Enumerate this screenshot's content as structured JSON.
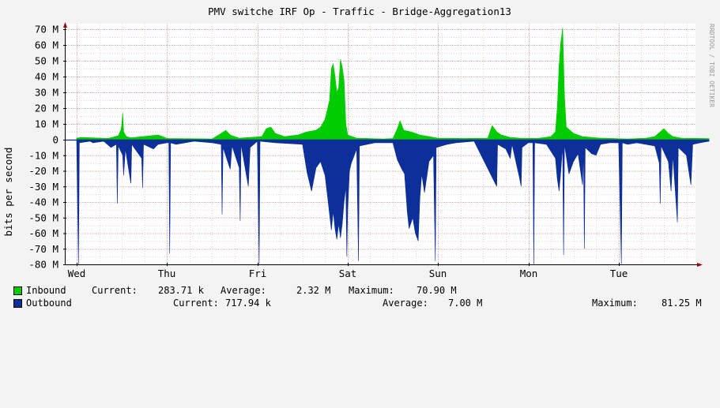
{
  "title": "PMV switche IRF Op - Traffic - Bridge-Aggregation13",
  "watermark": "RRDTOOL / TOBI OETIKER",
  "colors": {
    "background": "#f3f3f3",
    "canvas": "#ffffff",
    "grid": "#e5aaaa",
    "axis": "#000000",
    "arrow": "#a00000",
    "inbound": "#00cc00",
    "outbound": "#0c2f99",
    "outbound_line": "#002a97"
  },
  "legend": {
    "inbound": {
      "name": "Inbound",
      "current_label": "Current:",
      "current": "283.71 k",
      "average_label": "Average:",
      "average": "2.32 M",
      "maximum_label": "Maximum:",
      "maximum": "70.90 M"
    },
    "outbound": {
      "name": "Outbound",
      "current_label": "Current:",
      "current": "717.94 k",
      "average_label": "Average:",
      "average": "7.00 M",
      "maximum_label": "Maximum:",
      "maximum": "81.25 M"
    }
  },
  "chart_data": {
    "type": "area",
    "title": "PMV switche IRF Op - Traffic - Bridge-Aggregation13",
    "ylabel": "bits per second",
    "ylim": [
      -80000000,
      72000000
    ],
    "yticks": [
      {
        "value": 70000000,
        "label": "70 M"
      },
      {
        "value": 60000000,
        "label": "60 M"
      },
      {
        "value": 50000000,
        "label": "50 M"
      },
      {
        "value": 40000000,
        "label": "40 M"
      },
      {
        "value": 30000000,
        "label": "30 M"
      },
      {
        "value": 20000000,
        "label": "20 M"
      },
      {
        "value": 10000000,
        "label": "10 M"
      },
      {
        "value": 0,
        "label": "0"
      },
      {
        "value": -10000000,
        "label": "-10 M"
      },
      {
        "value": -20000000,
        "label": "-20 M"
      },
      {
        "value": -30000000,
        "label": "-30 M"
      },
      {
        "value": -40000000,
        "label": "-40 M"
      },
      {
        "value": -50000000,
        "label": "-50 M"
      },
      {
        "value": -60000000,
        "label": "-60 M"
      },
      {
        "value": -70000000,
        "label": "-70 M"
      },
      {
        "value": -80000000,
        "label": "-80 M"
      }
    ],
    "xrange_days": [
      0,
      7
    ],
    "xticks": [
      {
        "day": 0,
        "label": "Wed"
      },
      {
        "day": 1,
        "label": "Thu"
      },
      {
        "day": 2,
        "label": "Fri"
      },
      {
        "day": 3,
        "label": "Sat"
      },
      {
        "day": 4,
        "label": "Sun"
      },
      {
        "day": 5,
        "label": "Mon"
      },
      {
        "day": 6,
        "label": "Tue"
      }
    ],
    "grid": true,
    "series": [
      {
        "name": "Inbound",
        "color": "#00cc00",
        "direction": "up",
        "points": [
          [
            0.0,
            1.0
          ],
          [
            0.05,
            1.5
          ],
          [
            0.35,
            0.8
          ],
          [
            0.46,
            2.5
          ],
          [
            0.49,
            6
          ],
          [
            0.5,
            10
          ],
          [
            0.51,
            17
          ],
          [
            0.52,
            5
          ],
          [
            0.55,
            2
          ],
          [
            0.6,
            1.2
          ],
          [
            0.9,
            3
          ],
          [
            0.95,
            2
          ],
          [
            1.0,
            0.8
          ],
          [
            1.5,
            0.5
          ],
          [
            1.6,
            4
          ],
          [
            1.65,
            6
          ],
          [
            1.7,
            3
          ],
          [
            1.8,
            1
          ],
          [
            2.05,
            2
          ],
          [
            2.1,
            7
          ],
          [
            2.15,
            8
          ],
          [
            2.2,
            4
          ],
          [
            2.3,
            2
          ],
          [
            2.45,
            3
          ],
          [
            2.55,
            5
          ],
          [
            2.65,
            6
          ],
          [
            2.7,
            8
          ],
          [
            2.75,
            13
          ],
          [
            2.8,
            25
          ],
          [
            2.82,
            45
          ],
          [
            2.84,
            48
          ],
          [
            2.86,
            40
          ],
          [
            2.88,
            30
          ],
          [
            2.9,
            33
          ],
          [
            2.92,
            51
          ],
          [
            2.94,
            46
          ],
          [
            2.96,
            38
          ],
          [
            2.98,
            10
          ],
          [
            3.0,
            3
          ],
          [
            3.1,
            1
          ],
          [
            3.4,
            0.5
          ],
          [
            3.5,
            0.8
          ],
          [
            3.55,
            7
          ],
          [
            3.58,
            12
          ],
          [
            3.62,
            6
          ],
          [
            3.7,
            5
          ],
          [
            3.8,
            3
          ],
          [
            3.9,
            2
          ],
          [
            4.0,
            1
          ],
          [
            4.3,
            0.8
          ],
          [
            4.55,
            1
          ],
          [
            4.6,
            9
          ],
          [
            4.65,
            5
          ],
          [
            4.7,
            3
          ],
          [
            4.8,
            1.5
          ],
          [
            4.9,
            1
          ],
          [
            5.1,
            0.8
          ],
          [
            5.25,
            2
          ],
          [
            5.3,
            5
          ],
          [
            5.32,
            20
          ],
          [
            5.34,
            47
          ],
          [
            5.36,
            62
          ],
          [
            5.37,
            66
          ],
          [
            5.38,
            71
          ],
          [
            5.4,
            28
          ],
          [
            5.42,
            8
          ],
          [
            5.5,
            4
          ],
          [
            5.6,
            2
          ],
          [
            5.8,
            1
          ],
          [
            6.1,
            0.5
          ],
          [
            6.3,
            1
          ],
          [
            6.4,
            2
          ],
          [
            6.5,
            7
          ],
          [
            6.55,
            4
          ],
          [
            6.6,
            2
          ],
          [
            6.7,
            1
          ],
          [
            7.0,
            0.7
          ]
        ]
      },
      {
        "name": "Outbound",
        "color": "#0c2f99",
        "direction": "down",
        "points": [
          [
            0.0,
            1
          ],
          [
            0.02,
            80
          ],
          [
            0.03,
            2
          ],
          [
            0.15,
            1
          ],
          [
            0.18,
            2
          ],
          [
            0.3,
            1
          ],
          [
            0.38,
            5
          ],
          [
            0.44,
            3
          ],
          [
            0.45,
            41
          ],
          [
            0.46,
            4
          ],
          [
            0.51,
            10
          ],
          [
            0.52,
            23
          ],
          [
            0.54,
            6
          ],
          [
            0.6,
            28
          ],
          [
            0.61,
            3
          ],
          [
            0.72,
            12
          ],
          [
            0.73,
            31
          ],
          [
            0.74,
            3
          ],
          [
            0.85,
            6
          ],
          [
            0.9,
            3
          ],
          [
            1.0,
            2
          ],
          [
            1.02,
            2
          ],
          [
            1.03,
            73
          ],
          [
            1.04,
            2
          ],
          [
            1.1,
            3
          ],
          [
            1.3,
            1
          ],
          [
            1.5,
            2
          ],
          [
            1.6,
            3
          ],
          [
            1.61,
            48
          ],
          [
            1.62,
            5
          ],
          [
            1.7,
            19
          ],
          [
            1.72,
            4
          ],
          [
            1.8,
            18
          ],
          [
            1.81,
            52
          ],
          [
            1.82,
            3
          ],
          [
            1.9,
            30
          ],
          [
            1.92,
            5
          ],
          [
            2.0,
            1
          ],
          [
            2.02,
            80
          ],
          [
            2.03,
            1
          ],
          [
            2.2,
            2
          ],
          [
            2.5,
            3
          ],
          [
            2.55,
            21
          ],
          [
            2.6,
            33
          ],
          [
            2.65,
            18
          ],
          [
            2.7,
            14
          ],
          [
            2.75,
            23
          ],
          [
            2.78,
            38
          ],
          [
            2.82,
            58
          ],
          [
            2.84,
            46
          ],
          [
            2.86,
            57
          ],
          [
            2.88,
            64
          ],
          [
            2.9,
            54
          ],
          [
            2.92,
            63
          ],
          [
            2.94,
            54
          ],
          [
            2.96,
            40
          ],
          [
            2.98,
            30
          ],
          [
            2.99,
            75
          ],
          [
            3.0,
            45
          ],
          [
            3.02,
            20
          ],
          [
            3.04,
            15
          ],
          [
            3.06,
            12
          ],
          [
            3.1,
            6
          ],
          [
            3.12,
            78
          ],
          [
            3.13,
            4
          ],
          [
            3.3,
            2
          ],
          [
            3.5,
            2
          ],
          [
            3.55,
            13
          ],
          [
            3.6,
            19
          ],
          [
            3.63,
            22
          ],
          [
            3.66,
            46
          ],
          [
            3.68,
            57
          ],
          [
            3.72,
            50
          ],
          [
            3.75,
            60
          ],
          [
            3.78,
            65
          ],
          [
            3.8,
            37
          ],
          [
            3.82,
            22
          ],
          [
            3.85,
            34
          ],
          [
            3.9,
            14
          ],
          [
            3.95,
            10
          ],
          [
            3.97,
            78
          ],
          [
            3.98,
            5
          ],
          [
            4.1,
            3
          ],
          [
            4.2,
            2
          ],
          [
            4.4,
            1
          ],
          [
            4.65,
            30
          ],
          [
            4.66,
            3
          ],
          [
            4.75,
            6
          ],
          [
            4.8,
            12
          ],
          [
            4.82,
            3
          ],
          [
            4.9,
            24
          ],
          [
            4.92,
            30
          ],
          [
            4.93,
            5
          ],
          [
            5.0,
            2
          ],
          [
            5.05,
            2
          ],
          [
            5.06,
            80
          ],
          [
            5.07,
            2
          ],
          [
            5.2,
            3
          ],
          [
            5.3,
            12
          ],
          [
            5.32,
            25
          ],
          [
            5.34,
            33
          ],
          [
            5.36,
            20
          ],
          [
            5.38,
            4
          ],
          [
            5.39,
            74
          ],
          [
            5.4,
            3
          ],
          [
            5.45,
            22
          ],
          [
            5.5,
            14
          ],
          [
            5.55,
            9
          ],
          [
            5.6,
            29
          ],
          [
            5.61,
            4
          ],
          [
            5.62,
            70
          ],
          [
            5.63,
            5
          ],
          [
            5.7,
            9
          ],
          [
            5.75,
            10
          ],
          [
            5.8,
            3
          ],
          [
            5.9,
            2
          ],
          [
            6.0,
            2
          ],
          [
            6.03,
            80
          ],
          [
            6.04,
            2
          ],
          [
            6.1,
            3
          ],
          [
            6.2,
            2
          ],
          [
            6.4,
            4
          ],
          [
            6.45,
            15
          ],
          [
            6.46,
            41
          ],
          [
            6.47,
            4
          ],
          [
            6.55,
            14
          ],
          [
            6.58,
            33
          ],
          [
            6.6,
            10
          ],
          [
            6.65,
            53
          ],
          [
            6.66,
            5
          ],
          [
            6.75,
            10
          ],
          [
            6.8,
            29
          ],
          [
            6.82,
            3
          ],
          [
            6.9,
            2
          ],
          [
            7.0,
            1
          ]
        ]
      }
    ]
  }
}
